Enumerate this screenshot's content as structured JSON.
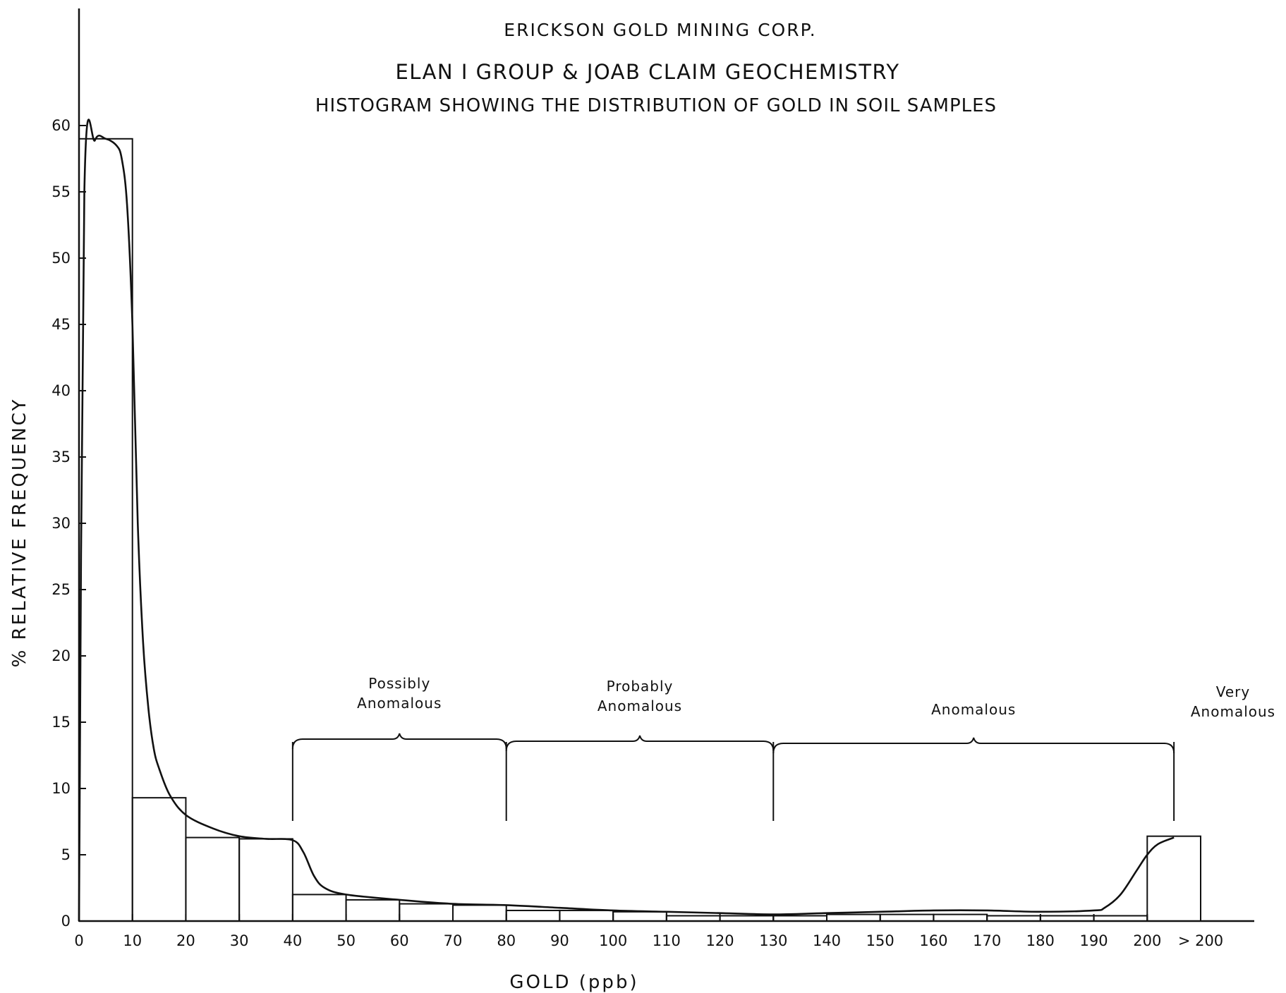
{
  "chart_data": {
    "type": "bar",
    "company": "ERICKSON GOLD MINING CORP.",
    "title": "ELAN I GROUP & JOAB CLAIM GEOCHEMISTRY",
    "subtitle": "HISTOGRAM SHOWING THE DISTRIBUTION OF GOLD IN SOIL SAMPLES",
    "xlabel": "GOLD (ppb)",
    "ylabel": "% RELATIVE FREQUENCY",
    "ylim": [
      0,
      60
    ],
    "xlim": [
      0,
      210
    ],
    "x_ticks": [
      {
        "value": 0,
        "label": "0"
      },
      {
        "value": 10,
        "label": "10"
      },
      {
        "value": 20,
        "label": "20"
      },
      {
        "value": 30,
        "label": "30"
      },
      {
        "value": 40,
        "label": "40"
      },
      {
        "value": 50,
        "label": "50"
      },
      {
        "value": 60,
        "label": "60"
      },
      {
        "value": 70,
        "label": "70"
      },
      {
        "value": 80,
        "label": "80"
      },
      {
        "value": 90,
        "label": "90"
      },
      {
        "value": 100,
        "label": "100"
      },
      {
        "value": 110,
        "label": "110"
      },
      {
        "value": 120,
        "label": "120"
      },
      {
        "value": 130,
        "label": "130"
      },
      {
        "value": 140,
        "label": "140"
      },
      {
        "value": 150,
        "label": "150"
      },
      {
        "value": 160,
        "label": "160"
      },
      {
        "value": 170,
        "label": "170"
      },
      {
        "value": 180,
        "label": "180"
      },
      {
        "value": 190,
        "label": "190"
      },
      {
        "value": 200,
        "label": "200"
      },
      {
        "value": 210,
        "label": "> 200"
      }
    ],
    "y_ticks": [
      0,
      5,
      10,
      15,
      20,
      25,
      30,
      35,
      40,
      45,
      50,
      55,
      60
    ],
    "bins": [
      {
        "from": 0,
        "to": 10,
        "value": 59.0
      },
      {
        "from": 10,
        "to": 20,
        "value": 9.3
      },
      {
        "from": 20,
        "to": 30,
        "value": 6.3
      },
      {
        "from": 30,
        "to": 40,
        "value": 6.2
      },
      {
        "from": 40,
        "to": 50,
        "value": 2.0
      },
      {
        "from": 50,
        "to": 60,
        "value": 1.6
      },
      {
        "from": 60,
        "to": 70,
        "value": 1.3
      },
      {
        "from": 70,
        "to": 80,
        "value": 1.2
      },
      {
        "from": 80,
        "to": 90,
        "value": 0.8
      },
      {
        "from": 90,
        "to": 100,
        "value": 0.8
      },
      {
        "from": 100,
        "to": 110,
        "value": 0.7
      },
      {
        "from": 110,
        "to": 120,
        "value": 0.4
      },
      {
        "from": 120,
        "to": 130,
        "value": 0.4
      },
      {
        "from": 130,
        "to": 140,
        "value": 0.4
      },
      {
        "from": 140,
        "to": 150,
        "value": 0.5
      },
      {
        "from": 150,
        "to": 160,
        "value": 0.5
      },
      {
        "from": 160,
        "to": 170,
        "value": 0.5
      },
      {
        "from": 170,
        "to": 180,
        "value": 0.4
      },
      {
        "from": 180,
        "to": 190,
        "value": 0.4
      },
      {
        "from": 190,
        "to": 200,
        "value": 0.4
      },
      {
        "from": 200,
        "to": 210,
        "value": 6.4
      }
    ],
    "curve": {
      "x": [
        0,
        1,
        3,
        5,
        7,
        8,
        9,
        10,
        11,
        12,
        13,
        14,
        15,
        17,
        20,
        25,
        30,
        35,
        40,
        42,
        44,
        46,
        50,
        60,
        70,
        80,
        90,
        100,
        110,
        120,
        130,
        140,
        150,
        160,
        170,
        180,
        190,
        192,
        195,
        198,
        200,
        202,
        205
      ],
      "y": [
        0,
        55,
        58.9,
        59,
        58.5,
        57.5,
        54,
        45,
        30,
        21,
        16,
        13,
        11.5,
        9.5,
        8,
        7,
        6.4,
        6.2,
        6.1,
        5.2,
        3.4,
        2.5,
        2.0,
        1.6,
        1.3,
        1.2,
        1.0,
        0.8,
        0.7,
        0.6,
        0.5,
        0.6,
        0.7,
        0.8,
        0.8,
        0.7,
        0.8,
        1.0,
        2.0,
        3.8,
        5.0,
        5.8,
        6.3
      ]
    },
    "zones": [
      {
        "label_lines": [
          "Possibly",
          "Anomalous"
        ],
        "from": 40,
        "to": 80
      },
      {
        "label_lines": [
          "Probably",
          "Anomalous"
        ],
        "from": 80,
        "to": 130
      },
      {
        "label_lines": [
          "Anomalous"
        ],
        "from": 130,
        "to": 205
      },
      {
        "label_lines": [
          "Very",
          "Anomalous"
        ],
        "from": 205,
        "to": 210
      }
    ],
    "grid": false,
    "legend": "none"
  }
}
